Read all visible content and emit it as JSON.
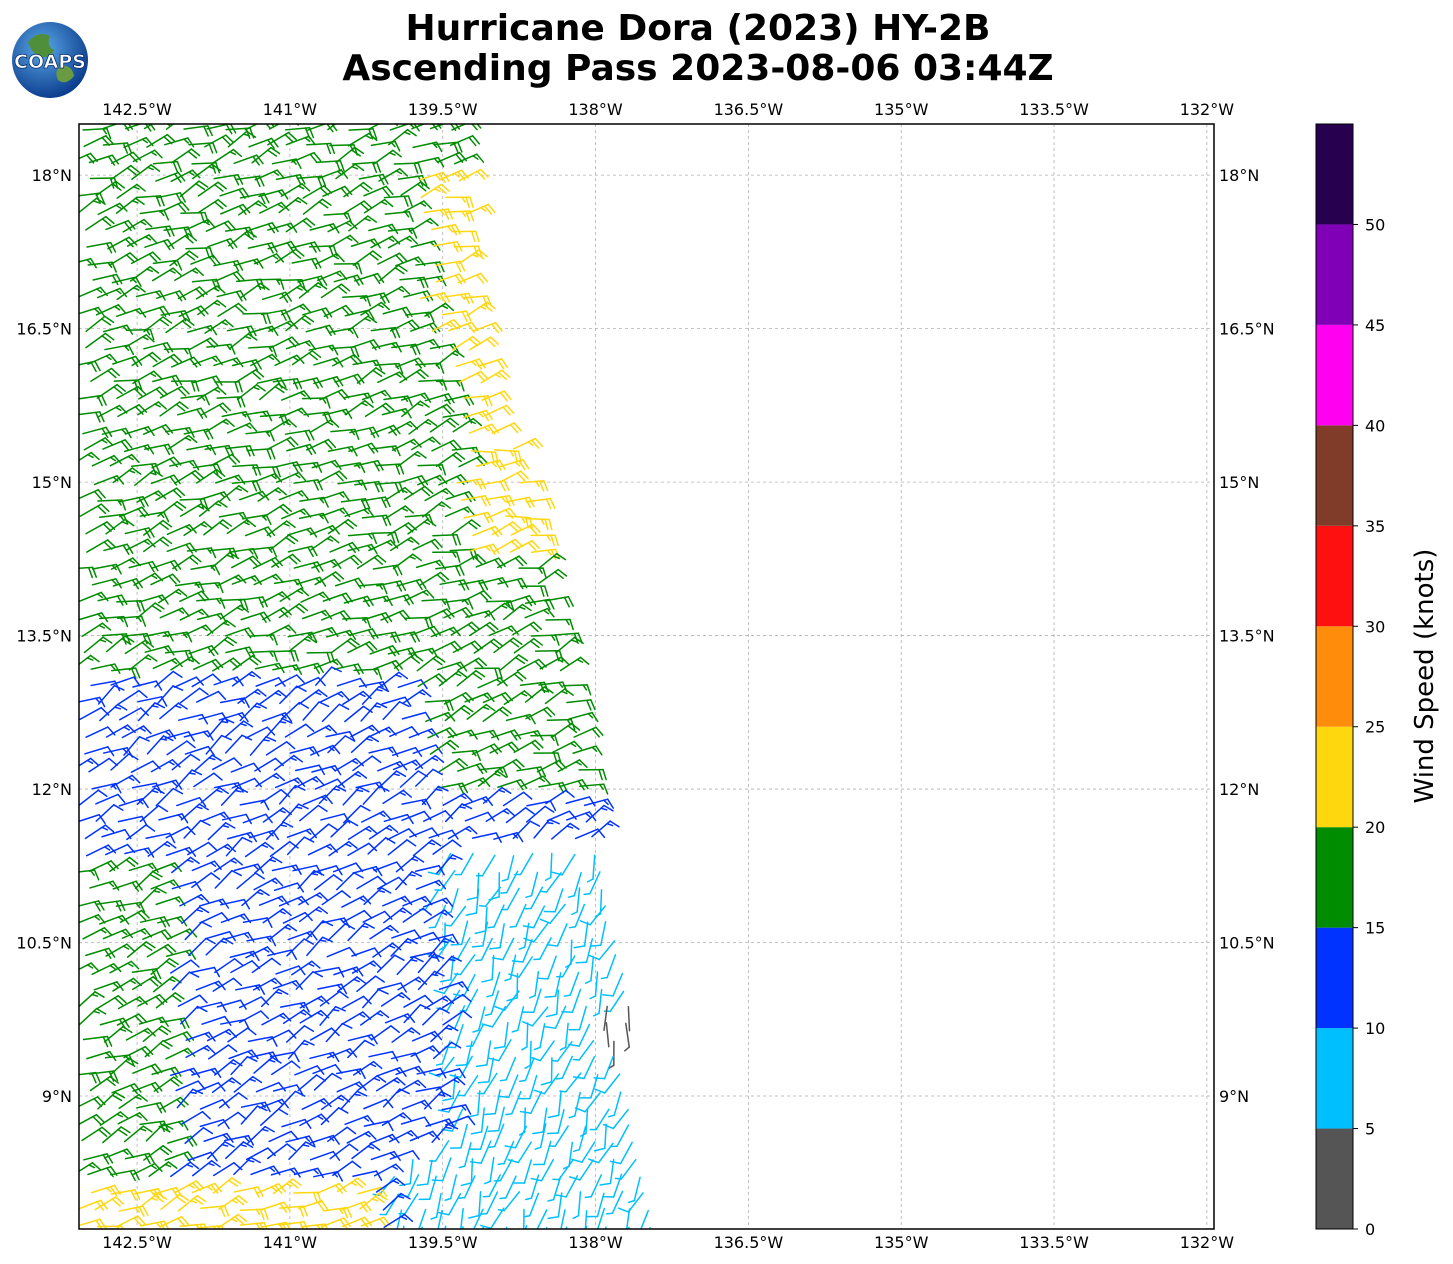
{
  "header": {
    "title_line1": "Hurricane Dora (2023) HY-2B",
    "title_line2": "Ascending Pass 2023-08-06 03:44Z",
    "logo_text": "COAPS"
  },
  "chart_data": {
    "type": "wind-barb map",
    "x_ticks": [
      "142.5°W",
      "141°W",
      "139.5°W",
      "138°W",
      "136.5°W",
      "135°W",
      "133.5°W",
      "132°W"
    ],
    "x_tick_values": [
      -142.5,
      -141,
      -139.5,
      -138,
      -136.5,
      -135,
      -133.5,
      -132
    ],
    "y_ticks": [
      "18°N",
      "16.5°N",
      "15°N",
      "13.5°N",
      "12°N",
      "10.5°N",
      "9°N"
    ],
    "y_tick_values": [
      18,
      16.5,
      15,
      13.5,
      12,
      10.5,
      9
    ],
    "xlim": [
      -143.07,
      -131.93
    ],
    "ylim": [
      7.7,
      18.5
    ],
    "grid": true,
    "colorbar": {
      "label": "Wind Speed (knots)",
      "bounds": [
        0,
        5,
        10,
        15,
        20,
        25,
        30,
        35,
        40,
        45,
        50,
        55
      ],
      "tick_labels": [
        "0",
        "5",
        "10",
        "15",
        "20",
        "25",
        "30",
        "35",
        "40",
        "45",
        "50"
      ],
      "colors": [
        "#555555",
        "#00bfff",
        "#0033ff",
        "#008c00",
        "#ffd70f",
        "#ff8c0a",
        "#ff1010",
        "#803c28",
        "#ff00f0",
        "#8000b8",
        "#280050"
      ]
    },
    "swath_right_edge": [
      {
        "lat": 18.5,
        "lon": -139.4
      },
      {
        "lat": 16.5,
        "lon": -139.1
      },
      {
        "lat": 14.5,
        "lon": -138.6
      },
      {
        "lat": 12.5,
        "lon": -138.2
      },
      {
        "lat": 11.0,
        "lon": -137.9
      },
      {
        "lat": 10.0,
        "lon": -137.7
      },
      {
        "lat": 8.5,
        "lon": -137.5
      },
      {
        "lat": 7.7,
        "lon": -137.3
      }
    ],
    "wind_regions": [
      {
        "name": "north green band",
        "speed_range": [
          15,
          20
        ],
        "lat_range": [
          13.1,
          18.5
        ],
        "dir_from_deg": 70
      },
      {
        "name": "eastern yellow strip",
        "speed_range": [
          20,
          25
        ],
        "lat_range": [
          14.2,
          18.0
        ],
        "dir_from_deg": 75
      },
      {
        "name": "central blue field",
        "speed_range": [
          10,
          15
        ],
        "lat_range": [
          8.4,
          13.0
        ],
        "dir_from_deg": 60
      },
      {
        "name": "south-east cyan field",
        "speed_range": [
          5,
          10
        ],
        "lat_range": [
          7.7,
          11.4
        ],
        "dir_from_deg": 200
      },
      {
        "name": "western green strip",
        "speed_range": [
          15,
          20
        ],
        "lat_range": [
          8.4,
          11.2
        ],
        "dir_from_deg": 65
      },
      {
        "name": "south-west yellow patch",
        "speed_range": [
          20,
          25
        ],
        "lat_range": [
          7.7,
          8.2
        ],
        "dir_from_deg": 70
      },
      {
        "name": "calm spot",
        "speed_range": [
          0,
          5
        ],
        "lat_range": [
          9.5,
          9.9
        ],
        "dir_from_deg": 170
      }
    ]
  }
}
